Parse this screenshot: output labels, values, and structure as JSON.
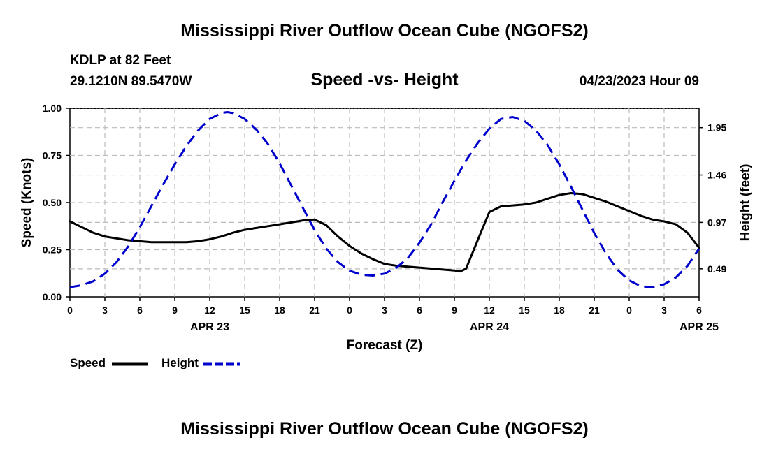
{
  "page": {
    "title_top": "Mississippi River Outflow Ocean Cube (NGOFS2)",
    "title_bottom": "Mississippi River Outflow Ocean Cube (NGOFS2)",
    "station_name": "KDLP at 82 Feet",
    "station_coords": "29.1210N  89.5470W",
    "subtitle": "Speed -vs- Height",
    "datetime": "04/23/2023 Hour 09"
  },
  "chart_data": {
    "type": "line",
    "title": "Speed -vs- Height",
    "xlabel": "Forecast (Z)",
    "ylabel_left": "Speed (Knots)",
    "ylabel_right": "Height (feet)",
    "xlim": [
      0,
      54
    ],
    "ylim_left": [
      0,
      1
    ],
    "ylim_right": [
      0.2,
      2.15
    ],
    "grid": true,
    "x_ticks": [
      0,
      3,
      6,
      9,
      12,
      15,
      18,
      21,
      24,
      27,
      30,
      33,
      36,
      39,
      42,
      45,
      48,
      51,
      54
    ],
    "x_tick_labels": [
      "0",
      "3",
      "6",
      "9",
      "12",
      "15",
      "18",
      "21",
      "0",
      "3",
      "6",
      "9",
      "12",
      "15",
      "18",
      "21",
      "0",
      "3",
      "6"
    ],
    "date_labels": [
      {
        "x": 12,
        "label": "APR 23"
      },
      {
        "x": 36,
        "label": "APR 24"
      },
      {
        "x": 54,
        "label": "APR 25"
      }
    ],
    "y_left_ticks": [
      0,
      0.25,
      0.5,
      0.75,
      1
    ],
    "y_left_tick_labels": [
      "0.00",
      "0.25",
      "0.50",
      "0.75",
      "1.00"
    ],
    "y_right_ticks": [
      0.49,
      0.97,
      1.46,
      1.95
    ],
    "y_right_tick_labels": [
      "0.49",
      "0.97",
      "1.46",
      "1.95"
    ],
    "series": [
      {
        "name": "Speed",
        "axis": "left",
        "color": "#000000",
        "style": "solid",
        "x": [
          0,
          1,
          2,
          3,
          4,
          5,
          6,
          7,
          8,
          9,
          10,
          11,
          12,
          13,
          14,
          15,
          16,
          17,
          18,
          19,
          20,
          21,
          22,
          23,
          24,
          25,
          26,
          27,
          28,
          29,
          30,
          31,
          32,
          33,
          33.5,
          34,
          35,
          36,
          37,
          38,
          39,
          40,
          41,
          42,
          43,
          44,
          45,
          46,
          47,
          48,
          49,
          50,
          51,
          52,
          53,
          54
        ],
        "values": [
          0.4,
          0.37,
          0.34,
          0.32,
          0.31,
          0.3,
          0.295,
          0.29,
          0.29,
          0.29,
          0.29,
          0.295,
          0.305,
          0.32,
          0.34,
          0.355,
          0.365,
          0.375,
          0.385,
          0.395,
          0.405,
          0.41,
          0.38,
          0.32,
          0.27,
          0.23,
          0.2,
          0.175,
          0.165,
          0.16,
          0.155,
          0.15,
          0.145,
          0.14,
          0.135,
          0.15,
          0.3,
          0.45,
          0.48,
          0.485,
          0.49,
          0.5,
          0.52,
          0.54,
          0.55,
          0.545,
          0.525,
          0.505,
          0.48,
          0.455,
          0.43,
          0.41,
          0.4,
          0.385,
          0.34,
          0.26
        ]
      },
      {
        "name": "Height",
        "axis": "right",
        "color": "#0000cc",
        "style": "dashed",
        "x": [
          0,
          1,
          2,
          3,
          4,
          5,
          6,
          7,
          8,
          9,
          10,
          11,
          12,
          13,
          13.5,
          14,
          15,
          16,
          17,
          18,
          19,
          20,
          21,
          22,
          23,
          24,
          25,
          26,
          27,
          28,
          29,
          30,
          31,
          32,
          33,
          34,
          35,
          36,
          37,
          38,
          39,
          40,
          41,
          42,
          43,
          44,
          45,
          46,
          47,
          48,
          49,
          50,
          51,
          52,
          53,
          54
        ],
        "values": [
          0.3,
          0.32,
          0.36,
          0.44,
          0.56,
          0.72,
          0.92,
          1.14,
          1.36,
          1.57,
          1.76,
          1.92,
          2.04,
          2.1,
          2.11,
          2.1,
          2.04,
          1.93,
          1.78,
          1.58,
          1.35,
          1.12,
          0.89,
          0.7,
          0.56,
          0.47,
          0.43,
          0.42,
          0.44,
          0.5,
          0.6,
          0.76,
          0.95,
          1.18,
          1.4,
          1.61,
          1.79,
          1.94,
          2.04,
          2.06,
          2.02,
          1.92,
          1.77,
          1.57,
          1.34,
          1.1,
          0.86,
          0.65,
          0.48,
          0.37,
          0.31,
          0.3,
          0.33,
          0.4,
          0.52,
          0.7
        ]
      }
    ],
    "legend": [
      {
        "label": "Speed",
        "color": "#000000",
        "style": "solid"
      },
      {
        "label": "Height",
        "color": "#0000cc",
        "style": "dashed"
      }
    ]
  }
}
